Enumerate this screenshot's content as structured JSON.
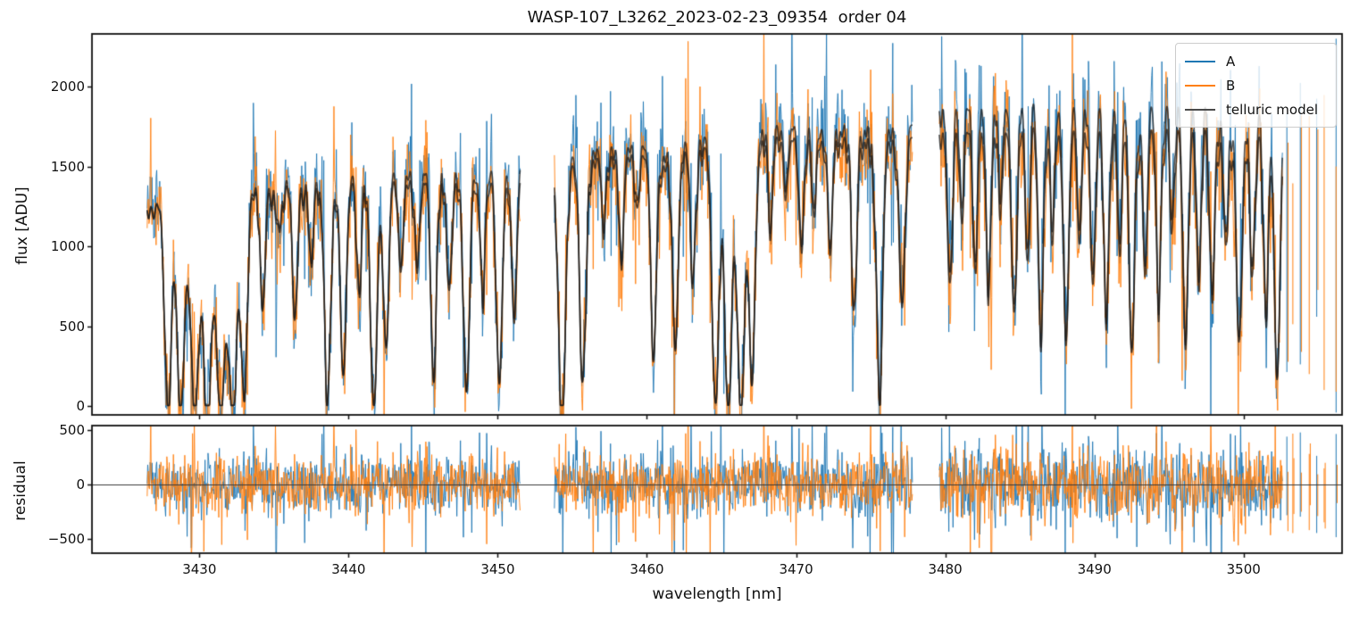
{
  "figure": {
    "title": "WASP-107_L3262_2023-02-23_09354  order 04"
  },
  "chart_data": [
    {
      "type": "line",
      "panel": "flux",
      "ylabel": "flux [ADU]",
      "xlim": [
        3422.8,
        3506.6
      ],
      "ylim": [
        -55,
        2330
      ],
      "yticks": {
        "values": [
          0,
          500,
          1000,
          1500,
          2000
        ],
        "labels": [
          "0",
          "500",
          "1000",
          "1500",
          "2000"
        ]
      },
      "legend": {
        "position": "upper right",
        "entries": [
          {
            "label": "A",
            "color": "#1f77b4"
          },
          {
            "label": "B",
            "color": "#ff7f0e"
          },
          {
            "label": "telluric model",
            "color": "#4a4a4a"
          }
        ]
      },
      "series_meta": [
        {
          "name": "A",
          "kind": "noisy spectrum",
          "color": "#1f77b4"
        },
        {
          "name": "B",
          "kind": "noisy spectrum",
          "color": "#ff7f0e"
        },
        {
          "name": "telluric model",
          "kind": "smooth model (one trace per beam)",
          "color": "rgba(25,25,25,0.75)"
        }
      ],
      "noise_sigma_adu": [
        140,
        150,
        170
      ],
      "segments": [
        {
          "range": [
            3426.5,
            3451.5
          ],
          "continuum_anchors": [
            [
              3426.5,
              1270
            ],
            [
              3428.5,
              1340
            ],
            [
              3431.5,
              1370
            ],
            [
              3434,
              1400
            ],
            [
              3438,
              1450
            ],
            [
              3443,
              1495
            ],
            [
              3448,
              1535
            ],
            [
              3451.5,
              1550
            ]
          ],
          "b_to_a_ratio": [
            [
              3426.5,
              0.995
            ],
            [
              3442,
              0.965
            ],
            [
              3451.5,
              0.945
            ]
          ],
          "absorption_lines": [
            [
              3427.9,
              1.0,
              0.22
            ],
            [
              3428.75,
              1.0,
              0.25
            ],
            [
              3429.7,
              1.0,
              0.28
            ],
            [
              3430.55,
              1.0,
              0.26
            ],
            [
              3431.45,
              1.0,
              0.28
            ],
            [
              3432.25,
              1.0,
              0.26
            ],
            [
              3433.0,
              0.9,
              0.2
            ],
            [
              3434.25,
              0.5,
              0.16
            ],
            [
              3435.35,
              0.18,
              0.13
            ],
            [
              3436.4,
              0.55,
              0.17
            ],
            [
              3437.5,
              0.3,
              0.15
            ],
            [
              3438.6,
              0.93,
              0.2
            ],
            [
              3439.65,
              0.85,
              0.19
            ],
            [
              3440.7,
              0.45,
              0.16
            ],
            [
              3441.7,
              1.0,
              0.22
            ],
            [
              3442.5,
              0.7,
              0.17
            ],
            [
              3443.5,
              0.4,
              0.15
            ],
            [
              3444.6,
              0.38,
              0.15
            ],
            [
              3445.7,
              0.82,
              0.19
            ],
            [
              3446.75,
              0.5,
              0.16
            ],
            [
              3447.9,
              0.9,
              0.2
            ],
            [
              3449.0,
              0.48,
              0.16
            ],
            [
              3450.1,
              0.88,
              0.2
            ],
            [
              3451.1,
              0.62,
              0.17
            ]
          ]
        },
        {
          "range": [
            3453.8,
            3477.8
          ],
          "continuum_anchors": [
            [
              3453.8,
              1560
            ],
            [
              3456,
              1610
            ],
            [
              3459,
              1650
            ],
            [
              3462,
              1680
            ],
            [
              3465,
              1700
            ],
            [
              3468,
              1760
            ],
            [
              3471,
              1800
            ],
            [
              3474,
              1790
            ],
            [
              3477.8,
              1760
            ]
          ],
          "b_to_a_ratio": [
            [
              3453.8,
              0.965
            ],
            [
              3477.8,
              0.955
            ]
          ],
          "absorption_lines": [
            [
              3454.3,
              1.0,
              0.24
            ],
            [
              3455.7,
              0.88,
              0.2
            ],
            [
              3457.1,
              0.28,
              0.14
            ],
            [
              3458.3,
              0.38,
              0.15
            ],
            [
              3459.35,
              0.22,
              0.13
            ],
            [
              3460.45,
              0.78,
              0.19
            ],
            [
              3461.9,
              0.75,
              0.19
            ],
            [
              3463.1,
              0.48,
              0.16
            ],
            [
              3464.6,
              0.97,
              0.22
            ],
            [
              3465.45,
              1.0,
              0.24
            ],
            [
              3466.3,
              1.0,
              0.24
            ],
            [
              3467.05,
              0.88,
              0.2
            ],
            [
              3468.3,
              0.32,
              0.14
            ],
            [
              3469.3,
              0.22,
              0.13
            ],
            [
              3470.35,
              0.38,
              0.15
            ],
            [
              3471.2,
              0.28,
              0.14
            ],
            [
              3472.3,
              0.42,
              0.15
            ],
            [
              3473.9,
              0.62,
              0.17
            ],
            [
              3475.6,
              0.92,
              0.21
            ],
            [
              3477.1,
              0.62,
              0.18
            ]
          ]
        },
        {
          "range": [
            3479.6,
            3502.6
          ],
          "continuum_anchors": [
            [
              3479.6,
              1900
            ],
            [
              3483,
              1950
            ],
            [
              3487,
              1945
            ],
            [
              3490,
              1930
            ],
            [
              3494,
              1915
            ],
            [
              3498,
              1905
            ],
            [
              3501,
              1860
            ],
            [
              3502.6,
              1800
            ]
          ],
          "b_to_a_ratio": [
            [
              3479.6,
              0.92
            ],
            [
              3502.6,
              0.925
            ]
          ],
          "absorption_lines": [
            [
              3480.3,
              0.55,
              0.16
            ],
            [
              3481.1,
              0.32,
              0.14
            ],
            [
              3482.0,
              0.47,
              0.15
            ],
            [
              3482.9,
              0.56,
              0.16
            ],
            [
              3483.7,
              0.3,
              0.13
            ],
            [
              3484.6,
              0.66,
              0.17
            ],
            [
              3485.5,
              0.46,
              0.15
            ],
            [
              3486.4,
              0.7,
              0.17
            ],
            [
              3487.2,
              0.36,
              0.14
            ],
            [
              3488.1,
              0.76,
              0.18
            ],
            [
              3489.0,
              0.42,
              0.14
            ],
            [
              3489.9,
              0.56,
              0.16
            ],
            [
              3490.8,
              0.66,
              0.17
            ],
            [
              3491.7,
              0.36,
              0.13
            ],
            [
              3492.5,
              0.8,
              0.18
            ],
            [
              3493.4,
              0.46,
              0.15
            ],
            [
              3494.3,
              0.6,
              0.16
            ],
            [
              3495.2,
              0.36,
              0.13
            ],
            [
              3496.1,
              0.7,
              0.17
            ],
            [
              3497.0,
              0.5,
              0.15
            ],
            [
              3497.9,
              0.6,
              0.16
            ],
            [
              3498.8,
              0.42,
              0.14
            ],
            [
              3499.7,
              0.76,
              0.19
            ],
            [
              3500.6,
              0.5,
              0.15
            ],
            [
              3501.5,
              0.64,
              0.16
            ],
            [
              3502.25,
              0.88,
              0.18
            ]
          ]
        }
      ],
      "sparse_tail": {
        "columns": [
          3502.9,
          3503.3,
          3503.8,
          3504.4,
          3504.9,
          3505.4,
          3506.2
        ]
      },
      "microlines": {
        "spacing_nm": 0.32,
        "depth_range": [
          0.02,
          0.13
        ],
        "width_range": [
          0.05,
          0.1
        ]
      }
    },
    {
      "type": "line",
      "panel": "residual",
      "ylabel": "residual",
      "xlabel": "wavelength [nm]",
      "xlim": [
        3422.8,
        3506.6
      ],
      "ylim": [
        -634,
        543
      ],
      "yticks": {
        "values": [
          500,
          0,
          -500
        ],
        "labels": [
          "500",
          "0",
          "−500"
        ]
      },
      "xticks": {
        "values": [
          3430,
          3440,
          3450,
          3460,
          3470,
          3480,
          3490,
          3500
        ],
        "labels": [
          "3430",
          "3440",
          "3450",
          "3460",
          "3470",
          "3480",
          "3490",
          "3500"
        ]
      },
      "zero_line": true
    }
  ]
}
